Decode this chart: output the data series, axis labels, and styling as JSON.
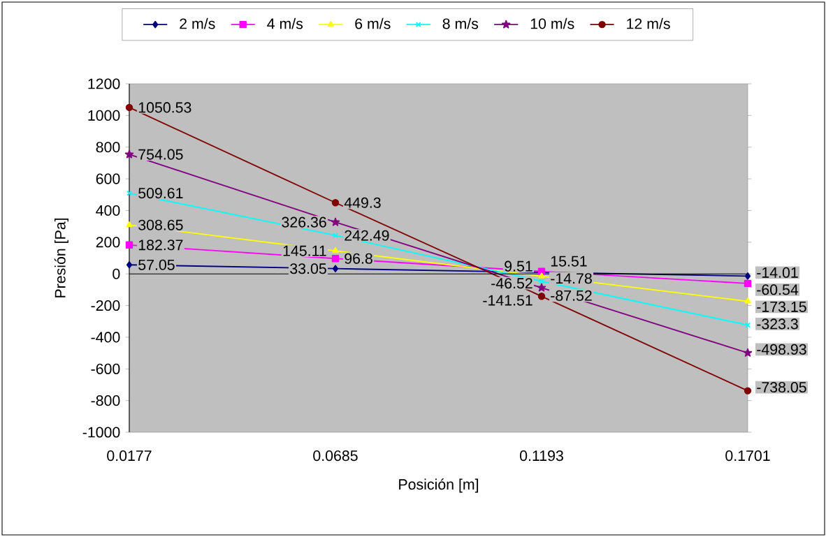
{
  "chart_data": {
    "type": "line",
    "xlabel": "Posición [m]",
    "ylabel": "Presión [Pa]",
    "categories": [
      "0.0177",
      "0.0685",
      "0.1193",
      "0.1701"
    ],
    "ylim": [
      -1000,
      1200
    ],
    "yticks": [
      -1000,
      -800,
      -600,
      -400,
      -200,
      0,
      200,
      400,
      600,
      800,
      1000,
      1200
    ],
    "legend": "top",
    "data_labels": true,
    "series": [
      {
        "name": "2  m/s",
        "color": "#000080",
        "marker": "diamond",
        "values": [
          57.05,
          33.05,
          9.51,
          -14.01
        ],
        "value_labels": [
          "57.05",
          "33.05",
          "9.51",
          "-14.01"
        ]
      },
      {
        "name": "4 m/s",
        "color": "#ff00ff",
        "marker": "square",
        "values": [
          182.37,
          96.8,
          15.51,
          -60.54
        ],
        "value_labels": [
          "182.37",
          "96.8",
          "15.51",
          "-60.54"
        ]
      },
      {
        "name": "6 m/s",
        "color": "#ffff00",
        "marker": "triangle",
        "values": [
          308.65,
          145.11,
          -14.78,
          -173.15
        ],
        "value_labels": [
          "308.65",
          "145.11",
          "-14.78",
          "-173.15"
        ]
      },
      {
        "name": "8 m/s",
        "color": "#00ffff",
        "marker": "cross",
        "values": [
          509.61,
          242.49,
          -46.52,
          -323.3
        ],
        "value_labels": [
          "509.61",
          "242.49",
          "-46.52",
          "-323.3"
        ]
      },
      {
        "name": "10 m/s",
        "color": "#800080",
        "marker": "star",
        "values": [
          754.05,
          326.36,
          -87.52,
          -498.93
        ],
        "value_labels": [
          "754.05",
          "326.36",
          "-87.52",
          "-498.93"
        ]
      },
      {
        "name": "12 m/s",
        "color": "#800000",
        "marker": "circle",
        "values": [
          1050.53,
          449.3,
          -141.51,
          -738.05
        ],
        "value_labels": [
          "1050.53",
          "449.3",
          "-141.51",
          "-738.05"
        ]
      }
    ]
  }
}
